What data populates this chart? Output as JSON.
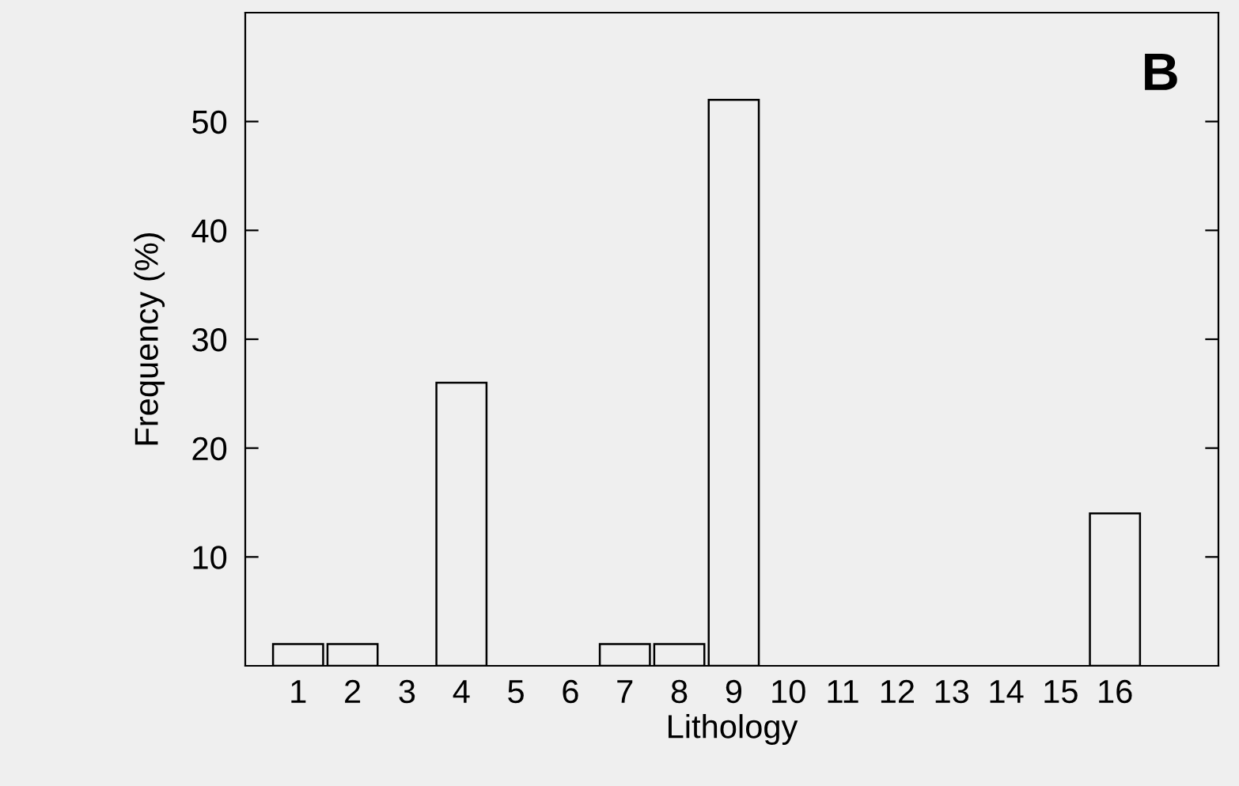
{
  "chart_data": {
    "type": "bar",
    "xlabel": "Lithology",
    "ylabel": "Frequency (%)",
    "categories": [
      "1",
      "2",
      "3",
      "4",
      "5",
      "6",
      "7",
      "8",
      "9",
      "10",
      "11",
      "12",
      "13",
      "14",
      "15",
      "16"
    ],
    "values": [
      2,
      2,
      0,
      26,
      0,
      0,
      2,
      2,
      52,
      0,
      0,
      0,
      0,
      0,
      0,
      14
    ],
    "color": "#efefef",
    "ylim": [
      0,
      60
    ],
    "yticks": [
      10,
      20,
      30,
      40,
      50
    ],
    "annotations": [
      "B"
    ],
    "grid": false,
    "legend": false
  }
}
